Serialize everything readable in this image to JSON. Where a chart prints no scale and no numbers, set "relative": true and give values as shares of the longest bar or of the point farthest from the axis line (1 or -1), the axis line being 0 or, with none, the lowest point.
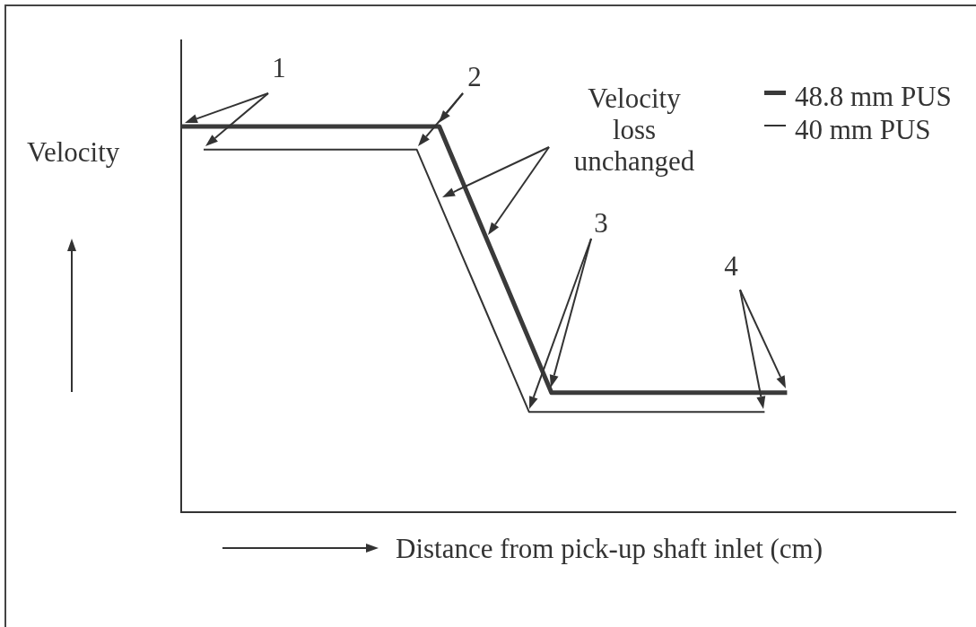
{
  "chart_data": {
    "type": "line",
    "xlabel": "Distance from pick-up shaft inlet (cm)",
    "ylabel": "Velocity",
    "relative": true,
    "tick_labels": false,
    "legend": "top right",
    "marker": "none",
    "line_style": "solid",
    "categories": [
      null,
      null,
      null,
      null,
      null,
      null,
      null,
      null,
      null,
      null,
      null,
      null,
      null,
      null,
      null,
      null,
      null,
      null,
      null,
      null,
      null,
      null,
      null,
      null,
      null,
      null,
      null,
      null,
      null,
      null,
      null,
      null,
      null,
      null,
      null,
      null,
      null,
      null,
      null,
      null,
      null,
      null,
      null,
      null,
      null,
      null,
      null,
      null,
      null,
      null,
      null,
      null,
      null,
      null,
      null,
      null,
      null,
      null,
      null,
      null,
      null,
      null,
      null,
      null,
      null,
      null,
      null,
      null,
      null,
      null
    ],
    "series": [
      {
        "name": "48.8 mm PUS",
        "color": "#3a3a3a",
        "values": [
          1,
          1,
          1,
          1,
          1,
          1,
          1,
          1,
          1,
          1,
          1,
          1,
          1,
          1,
          1,
          1,
          1,
          1,
          1,
          1,
          1,
          1,
          1,
          1,
          0.931,
          0.862,
          0.793,
          0.724,
          0.655,
          0.586,
          0.517,
          0.448,
          0.379,
          0.31,
          0.31,
          0.31,
          0.31,
          0.31,
          0.31,
          0.31,
          0.31,
          0.31,
          0.31,
          0.31,
          0.31,
          0.31,
          0.31,
          0.31,
          0.31,
          0.31,
          0.31,
          0.31,
          0.31,
          0.31,
          0.31,
          null,
          null,
          null,
          null,
          null,
          null,
          null,
          null,
          null,
          null,
          null,
          null,
          null,
          null,
          null
        ]
      },
      {
        "name": "40 mm PUS",
        "color": "#333333",
        "values": [
          null,
          null,
          0.94,
          0.94,
          0.94,
          0.94,
          0.94,
          0.94,
          0.94,
          0.94,
          0.94,
          0.94,
          0.94,
          0.94,
          0.94,
          0.94,
          0.94,
          0.94,
          0.94,
          0.94,
          0.94,
          0.94,
          0.872,
          0.804,
          0.736,
          0.668,
          0.6,
          0.532,
          0.464,
          0.396,
          0.328,
          0.26,
          0.26,
          0.26,
          0.26,
          0.26,
          0.26,
          0.26,
          0.26,
          0.26,
          0.26,
          0.26,
          0.26,
          0.26,
          0.26,
          0.26,
          0.26,
          0.26,
          0.26,
          0.26,
          0.26,
          0.26,
          0.26,
          null,
          null,
          null,
          null,
          null,
          null,
          null,
          null,
          null,
          null,
          null,
          null,
          null,
          null,
          null,
          null,
          null
        ]
      }
    ],
    "annotations": [
      "1",
      "2",
      "Velocity loss unchanged",
      "3",
      "4"
    ]
  }
}
